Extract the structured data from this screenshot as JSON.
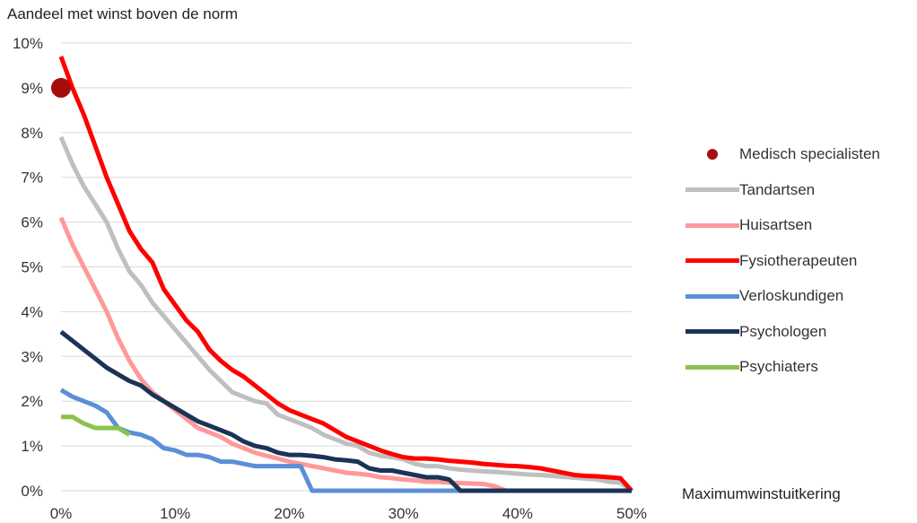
{
  "chart_data": {
    "type": "line",
    "ylabel": "Aandeel met winst boven de norm",
    "xlabel": "Maximumwinstuitkering",
    "x_ticks": [
      "0%",
      "10%",
      "20%",
      "30%",
      "40%",
      "50%"
    ],
    "y_ticks": [
      "0%",
      "1%",
      "2%",
      "3%",
      "4%",
      "5%",
      "6%",
      "7%",
      "8%",
      "9%",
      "10%"
    ],
    "xlim": [
      0,
      50
    ],
    "ylim": [
      0,
      10
    ],
    "grid": "horizontal",
    "legend_position": "right",
    "points": [
      {
        "name": "Medisch specialisten",
        "x": 0,
        "y": 9.0,
        "color": "#a50d0d"
      }
    ],
    "series": [
      {
        "name": "Tandartsen",
        "color": "#bfbfbf",
        "x": [
          0,
          1,
          2,
          3,
          4,
          5,
          6,
          7,
          8,
          9,
          10,
          11,
          12,
          13,
          14,
          15,
          16,
          17,
          18,
          19,
          20,
          21,
          22,
          23,
          24,
          25,
          26,
          27,
          28,
          29,
          30,
          31,
          32,
          33,
          34,
          35,
          36,
          37,
          38,
          39,
          40,
          41,
          42,
          43,
          44,
          45,
          46,
          47,
          48,
          49,
          50
        ],
        "y": [
          7.9,
          7.3,
          6.8,
          6.4,
          6.0,
          5.4,
          4.9,
          4.6,
          4.2,
          3.9,
          3.6,
          3.3,
          3.0,
          2.7,
          2.45,
          2.2,
          2.1,
          2.0,
          1.95,
          1.7,
          1.6,
          1.5,
          1.4,
          1.25,
          1.15,
          1.05,
          1.0,
          0.85,
          0.78,
          0.75,
          0.7,
          0.6,
          0.55,
          0.55,
          0.5,
          0.47,
          0.45,
          0.43,
          0.42,
          0.4,
          0.38,
          0.36,
          0.35,
          0.33,
          0.31,
          0.29,
          0.27,
          0.25,
          0.2,
          0.18,
          0.0
        ]
      },
      {
        "name": "Huisartsen",
        "color": "#ff9999",
        "x": [
          0,
          1,
          2,
          3,
          4,
          5,
          6,
          7,
          8,
          9,
          10,
          11,
          12,
          13,
          14,
          15,
          16,
          17,
          18,
          19,
          20,
          21,
          22,
          23,
          24,
          25,
          26,
          27,
          28,
          29,
          30,
          31,
          32,
          33,
          34,
          35,
          36,
          37,
          38,
          39
        ],
        "y": [
          6.1,
          5.5,
          5.0,
          4.5,
          4.0,
          3.4,
          2.9,
          2.5,
          2.2,
          2.0,
          1.8,
          1.6,
          1.4,
          1.3,
          1.2,
          1.05,
          0.95,
          0.85,
          0.78,
          0.72,
          0.65,
          0.6,
          0.55,
          0.5,
          0.45,
          0.4,
          0.38,
          0.35,
          0.3,
          0.28,
          0.25,
          0.23,
          0.2,
          0.2,
          0.18,
          0.17,
          0.16,
          0.15,
          0.1,
          0.0
        ]
      },
      {
        "name": "Fysiotherapeuten",
        "color": "#ff0000",
        "x": [
          0,
          1,
          2,
          3,
          4,
          5,
          6,
          7,
          8,
          9,
          10,
          11,
          12,
          13,
          14,
          15,
          16,
          17,
          18,
          19,
          20,
          21,
          22,
          23,
          24,
          25,
          26,
          27,
          28,
          29,
          30,
          31,
          32,
          33,
          34,
          35,
          36,
          37,
          38,
          39,
          40,
          41,
          42,
          43,
          44,
          45,
          46,
          47,
          48,
          49,
          50
        ],
        "y": [
          9.7,
          9.0,
          8.4,
          7.7,
          7.0,
          6.4,
          5.8,
          5.4,
          5.1,
          4.5,
          4.15,
          3.8,
          3.55,
          3.15,
          2.9,
          2.7,
          2.55,
          2.35,
          2.15,
          1.95,
          1.8,
          1.7,
          1.6,
          1.5,
          1.35,
          1.2,
          1.1,
          1.0,
          0.9,
          0.82,
          0.75,
          0.72,
          0.72,
          0.7,
          0.67,
          0.65,
          0.63,
          0.6,
          0.58,
          0.56,
          0.55,
          0.53,
          0.5,
          0.45,
          0.4,
          0.35,
          0.33,
          0.32,
          0.3,
          0.28,
          0.0
        ]
      },
      {
        "name": "Verloskundigen",
        "color": "#5b8fd6",
        "x": [
          0,
          1,
          2,
          3,
          4,
          5,
          6,
          7,
          8,
          9,
          10,
          11,
          12,
          13,
          14,
          15,
          16,
          17,
          18,
          19,
          20,
          21,
          22,
          50
        ],
        "y": [
          2.25,
          2.1,
          2.0,
          1.9,
          1.75,
          1.4,
          1.3,
          1.25,
          1.15,
          0.95,
          0.9,
          0.8,
          0.8,
          0.75,
          0.65,
          0.65,
          0.6,
          0.55,
          0.55,
          0.55,
          0.55,
          0.55,
          0.0,
          0.0
        ]
      },
      {
        "name": "Psychologen",
        "color": "#1a3357",
        "x": [
          0,
          1,
          2,
          3,
          4,
          5,
          6,
          7,
          8,
          9,
          10,
          11,
          12,
          13,
          14,
          15,
          16,
          17,
          18,
          19,
          20,
          21,
          22,
          23,
          24,
          25,
          26,
          27,
          28,
          29,
          30,
          31,
          32,
          33,
          34,
          35,
          50
        ],
        "y": [
          3.55,
          3.35,
          3.15,
          2.95,
          2.75,
          2.6,
          2.45,
          2.35,
          2.15,
          2.0,
          1.85,
          1.7,
          1.55,
          1.45,
          1.35,
          1.25,
          1.1,
          1.0,
          0.95,
          0.85,
          0.8,
          0.8,
          0.78,
          0.75,
          0.7,
          0.68,
          0.65,
          0.5,
          0.45,
          0.45,
          0.4,
          0.35,
          0.3,
          0.3,
          0.25,
          0.0,
          0.0
        ]
      },
      {
        "name": "Psychiaters",
        "color": "#8bc34a",
        "x": [
          0,
          1,
          2,
          3,
          4,
          5,
          6
        ],
        "y": [
          1.65,
          1.65,
          1.5,
          1.4,
          1.4,
          1.4,
          1.25
        ]
      }
    ]
  }
}
